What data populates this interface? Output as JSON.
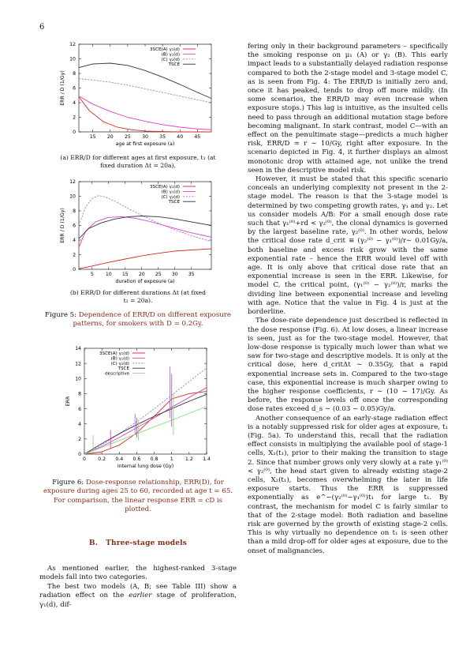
{
  "page_number": "6",
  "figure5": {
    "panel_a": {
      "caption_line1": "(a) ERR/D for different ages at first exposure, t₁ (at",
      "caption_line2": "fixed duration Δt = 20a)."
    },
    "panel_b": {
      "caption_line1": "(b) ERR/D for different durations Δt (at fixed",
      "caption_line2": "t₁ = 20a)."
    },
    "caption_label": "Figure 5:",
    "caption_line1": "Dependence of ERR/D on different exposure",
    "caption_line2": "patterns, for smokers with D = 0.2Gy."
  },
  "figure6": {
    "caption_label": "Figure 6:",
    "caption_line1": "Dose-response relationship, ERR(D), for",
    "caption_line2": "exposure during ages 25 to 60, recorded at age t = 65.",
    "caption_line3": "For comparison, the linear response ERR = cD is",
    "caption_line4": "plotted."
  },
  "chart_data": [
    {
      "type": "line",
      "xlabel": "age at first exposure  (a)",
      "ylabel": "ERR / D  (1/Gy)",
      "xlim": [
        11,
        49
      ],
      "ylim": [
        0,
        12
      ],
      "xticks": [
        15,
        20,
        25,
        30,
        35,
        40,
        45
      ],
      "yticks": [
        0,
        2,
        4,
        6,
        8,
        10,
        12
      ],
      "legend_position": "top-right",
      "series": [
        {
          "name": "3SCE(A) γ₁(d)",
          "color": "#d62728",
          "dash": "solid",
          "x": [
            11,
            14,
            18,
            22,
            26,
            30,
            34,
            38,
            42,
            46,
            49
          ],
          "y": [
            4.8,
            2.9,
            1.4,
            0.65,
            0.3,
            0.12,
            0.05,
            0.02,
            0.01,
            0.0,
            0.0
          ]
        },
        {
          "name": "(B) γ₁(d)",
          "color": "#e040c0",
          "dash": "solid",
          "x": [
            11,
            15,
            20,
            25,
            30,
            35,
            40,
            45,
            49
          ],
          "y": [
            4.9,
            3.8,
            2.8,
            2.0,
            1.45,
            1.0,
            0.65,
            0.4,
            0.3
          ]
        },
        {
          "name": "(C) γ₂(d)",
          "color": "#9080e8",
          "dash": "dashed",
          "x": [
            11,
            15,
            20,
            25,
            30,
            35,
            40,
            45,
            49
          ],
          "y": [
            7.3,
            7.1,
            6.8,
            6.4,
            5.9,
            5.4,
            4.9,
            4.4,
            4.0
          ]
        },
        {
          "name": "TSCE",
          "color": "#333333",
          "dash": "solid",
          "x": [
            11,
            15,
            20,
            25,
            30,
            35,
            40,
            45,
            49
          ],
          "y": [
            8.8,
            9.3,
            9.4,
            9.1,
            8.4,
            7.5,
            6.5,
            5.4,
            4.6
          ]
        }
      ]
    },
    {
      "type": "line",
      "xlabel": "duration of exposure  (a)",
      "ylabel": "ERR / D  (1/Gy)",
      "xlim": [
        1,
        41
      ],
      "ylim": [
        0,
        12
      ],
      "xticks": [
        5,
        10,
        15,
        20,
        25,
        30,
        35
      ],
      "yticks": [
        0,
        2,
        4,
        6,
        8,
        10,
        12
      ],
      "legend_position": "top-right",
      "series": [
        {
          "name": "3SCE(A) γ₁(d)",
          "color": "#d62728",
          "dash": "solid",
          "x": [
            1,
            3,
            6,
            10,
            15,
            20,
            25,
            30,
            35,
            41
          ],
          "y": [
            0.1,
            0.25,
            0.55,
            0.95,
            1.4,
            1.85,
            2.2,
            2.5,
            2.65,
            2.8
          ]
        },
        {
          "name": "(B) γ₁(d)",
          "color": "#e040c0",
          "dash": "solid",
          "x": [
            1,
            3,
            6,
            10,
            14,
            18,
            22,
            26,
            30,
            35,
            41
          ],
          "y": [
            3.0,
            5.2,
            6.5,
            7.1,
            7.2,
            7.0,
            6.6,
            6.1,
            5.6,
            5.0,
            4.4
          ]
        },
        {
          "name": "(C) γ₂(d)",
          "color": "#9080e8",
          "dash": "dashed",
          "x": [
            1,
            3,
            5,
            7,
            9,
            12,
            16,
            20,
            25,
            30,
            35,
            41
          ],
          "y": [
            6.0,
            8.5,
            9.7,
            10.1,
            9.9,
            9.3,
            8.3,
            7.4,
            6.3,
            5.4,
            4.6,
            3.8
          ]
        },
        {
          "name": "TSCE",
          "color": "#333333",
          "dash": "solid",
          "x": [
            1,
            4,
            8,
            12,
            16,
            20,
            25,
            30,
            35,
            41
          ],
          "y": [
            4.2,
            5.6,
            6.4,
            6.9,
            7.2,
            7.3,
            7.2,
            6.9,
            6.5,
            6.0
          ]
        }
      ]
    },
    {
      "type": "line",
      "xlabel": "Internal lung dose  (Gy)",
      "ylabel": "ERR",
      "xlim": [
        0,
        1.4
      ],
      "ylim": [
        0,
        14
      ],
      "xticks": [
        "0",
        "0.2",
        "0.4",
        "0.6",
        "0.8",
        "1",
        "1.2",
        "1.4"
      ],
      "yticks": [
        0,
        2,
        4,
        6,
        8,
        10,
        12,
        14
      ],
      "legend_position": "top-left",
      "series": [
        {
          "name": "3SCE(A) γ₁(d)",
          "color": "#d62728",
          "dash": "solid",
          "x": [
            0,
            0.2,
            0.4,
            0.6,
            0.8,
            1.0,
            1.2,
            1.4
          ],
          "y": [
            0,
            0.3,
            1.2,
            2.8,
            5.0,
            7.3,
            8.0,
            8.3
          ]
        },
        {
          "name": "(B) γ₁(d)",
          "color": "#e040c0",
          "dash": "solid",
          "x": [
            0,
            0.2,
            0.4,
            0.6,
            0.8,
            1.0,
            1.2,
            1.4
          ],
          "y": [
            0,
            1.0,
            2.2,
            3.5,
            4.8,
            6.2,
            7.5,
            8.8
          ]
        },
        {
          "name": "(C) γ₂(d)",
          "color": "#9080e8",
          "dash": "dashed",
          "x": [
            0,
            0.2,
            0.4,
            0.6,
            0.8,
            1.0,
            1.2,
            1.4
          ],
          "y": [
            0,
            1.2,
            2.7,
            4.3,
            6.0,
            7.8,
            9.6,
            11.4
          ]
        },
        {
          "name": "TSCE",
          "color": "#333333",
          "dash": "solid",
          "x": [
            0,
            0.2,
            0.4,
            0.6,
            0.8,
            1.0,
            1.2,
            1.4
          ],
          "y": [
            0,
            1.4,
            2.7,
            3.9,
            5.0,
            6.0,
            7.0,
            7.9
          ]
        },
        {
          "name": "descriptive",
          "color": "#7fdb7f",
          "dash": "solid",
          "x": [
            0,
            1.4
          ],
          "y": [
            0,
            6.3
          ]
        }
      ],
      "error_bars": [
        {
          "x": 0.1,
          "y_low": 0.6,
          "y_high": 2.5,
          "color": "#7fdb7f"
        },
        {
          "x": 0.3,
          "y_low": 0.8,
          "y_high": 3.2,
          "color": "#e040c0"
        },
        {
          "x": 0.58,
          "y_low": 2.5,
          "y_high": 5.4,
          "color": "#9080e8"
        },
        {
          "x": 0.6,
          "y_low": 2.2,
          "y_high": 4.8,
          "color": "#e040c0"
        },
        {
          "x": 0.62,
          "y_low": 1.8,
          "y_high": 4.5,
          "color": "#7fdb7f"
        },
        {
          "x": 0.98,
          "y_low": 4.8,
          "y_high": 11.6,
          "color": "#9080e8"
        },
        {
          "x": 1.0,
          "y_low": 3.6,
          "y_high": 10.6,
          "color": "#e040c0"
        },
        {
          "x": 1.02,
          "y_low": 2.5,
          "y_high": 8.0,
          "color": "#7fdb7f"
        }
      ]
    }
  ],
  "section_b": {
    "number": "B.",
    "title": "Three-stage models"
  },
  "left_text": {
    "p1": "As mentioned earlier, the highest-ranked 3-stage models fall into two categories.",
    "p2_pre": "The best two models (A, B; see Table III) show a radiation effect on the ",
    "p2_em": "earlier",
    "p2_post": " stage of proliferation, γ₁(d), dif-"
  },
  "right_text": {
    "p1": "fering only in their background parameters – specifically the smoking response on μ₁ (A) or γ₂ (B). This early impact leads to a substantially delayed radiation response compared to both the 2-stage model and 3-stage model C, as is seen from Fig. 4: The ERR/D is initially zero and, once it has peaked, tends to drop off more mildly. (In some scenarios, the ERR/D may even increase when exposure stops.) This lag is intuitive, as the insulted cells need to pass through an additional mutation stage before becoming malignant. In stark contrast, model C—with an effect on the penultimate stage—predicts a much higher risk, ERR/D ≃ r ∼ 10/Gy, right after exposure. In the scenario depicted in Fig. 4, it further displays an almost monotonic drop with attained age, not unlike the trend seen in the descriptive model risk.",
    "p2": "However, it must be stated that this specific scenario conceals an underlying complexity not present in the 2-stage model. The reason is that the 3-stage model is determined by two competing growth rates, γ₁ and γ₂. Let us consider models A/B: For a small enough dose rate such that γ₁⁽⁰⁾+rd < γ₂⁽⁰⁾, the clonal dynamics is governed by the largest baseline rate, γ₂⁽⁰⁾. In other words, below the critical dose rate d_crit ≡ (γ₂⁽⁰⁾ − γ₁⁽⁰⁾)/r∼ 0.01Gy/a, both baseline and excess risk grow with the same exponential rate – hence the ERR would level off with age. It is only above that critical dose rate that an exponential increase is seen in the ERR. Likewise, for model C, the critical point, (γ₁⁽⁰⁾ − γ₂⁽⁰⁾)/r, marks the dividing line between exponential increase and leveling with age. Notice that the value in Fig. 4 is just at the borderline.",
    "p3": "The dose-rate dependence just described is reflected in the dose response (Fig. 6). At low doses, a linear increase is seen, just as for the two-stage model. However, that low-dose response is typically much lower than what we saw for two-stage and descriptive models. It is only at the critical dose, here d_critΔt ∼ 0.35Gy, that a rapid exponential increase sets in. Compared to the two-stage case, this exponential increase is much sharper owing to the higher response coefficients, r ∼ (10 − 17)/Gy. As before, the response levels off once the corresponding dose rates exceed d_s ∼ (0.03 − 0.05)Gy/a.",
    "p4": "Another consequence of an early-stage radiation effect is a notably suppressed risk for older ages at exposure, t₁ (Fig. 5a). To understand this, recall that the radiation effect consists in multiplying the available pool of stage-1 cells, X₁(t₁), prior to their making the transition to stage 2. Since that number grows only very slowly at a rate γ₁⁽⁰⁾ < γ₂⁽⁰⁾, the head start given to already existing stage-2 cells, X₂(t₁), becomes overwhelming the later in life exposure starts. Thus the ERR is suppressed exponentially as e^−(γ₂⁽⁰⁾−γ₁⁽⁰⁾)t₁ for large t₁. By contrast, the mechanism for model C is fairly similar to that of the 2-stage model: Both radiation and baseline risk are governed by the growth of existing stage-2 cells. This is why virtually no dependence on t₁ is seen other than a mild drop-off for older ages at exposure, due to the onset of malignancies."
  }
}
